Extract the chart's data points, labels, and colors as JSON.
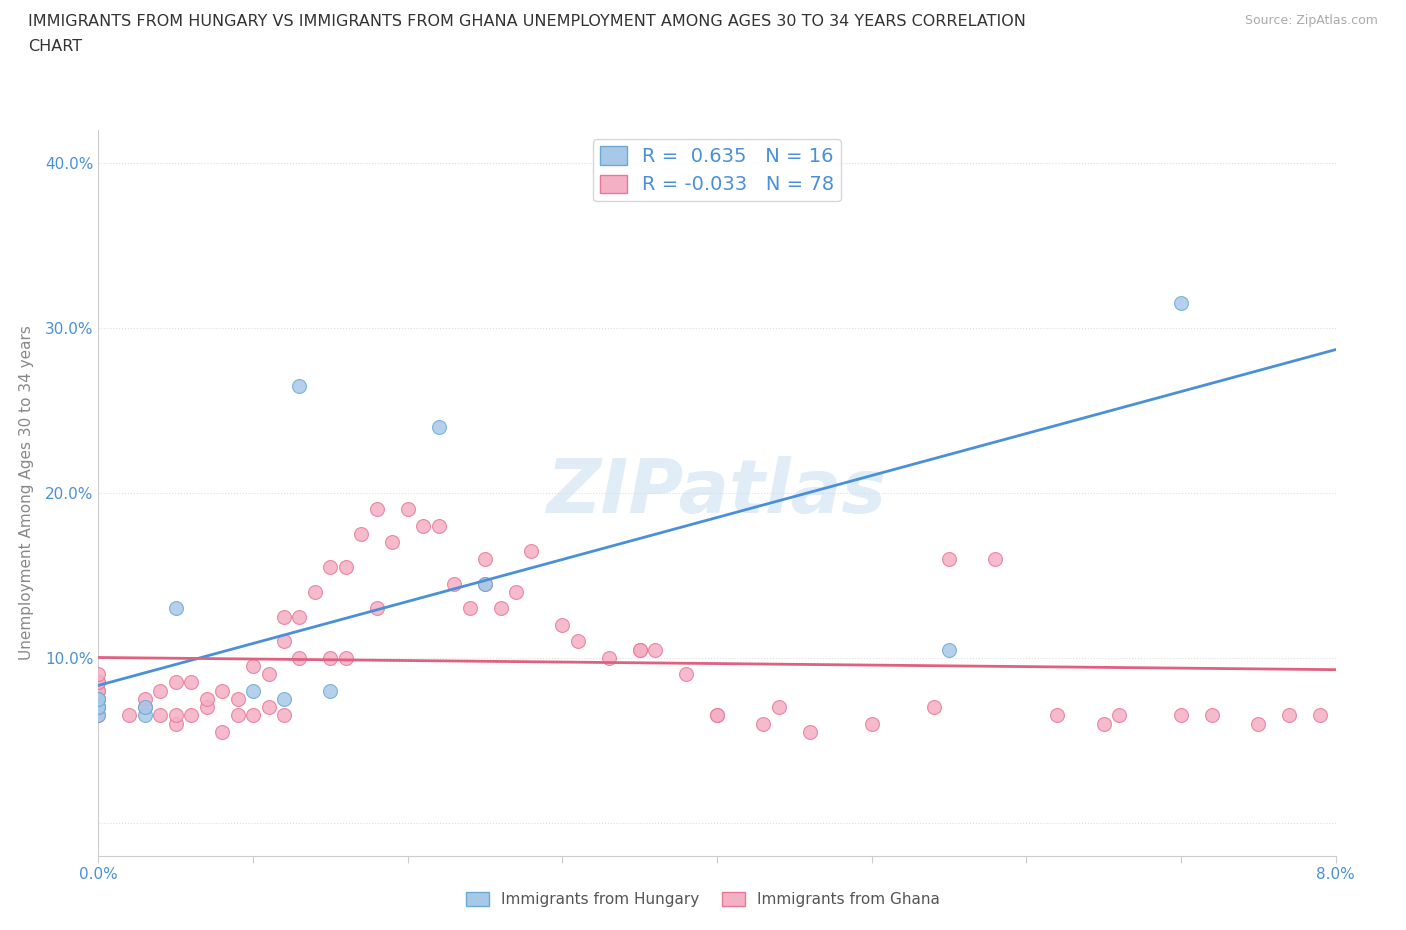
{
  "title_line1": "IMMIGRANTS FROM HUNGARY VS IMMIGRANTS FROM GHANA UNEMPLOYMENT AMONG AGES 30 TO 34 YEARS CORRELATION",
  "title_line2": "CHART",
  "source": "Source: ZipAtlas.com",
  "ylabel": "Unemployment Among Ages 30 to 34 years",
  "xlim": [
    0.0,
    0.08
  ],
  "ylim": [
    -0.02,
    0.42
  ],
  "x_ticks": [
    0.0,
    0.01,
    0.02,
    0.03,
    0.04,
    0.05,
    0.06,
    0.07,
    0.08
  ],
  "x_tick_labels": [
    "0.0%",
    "",
    "",
    "",
    "",
    "",
    "",
    "",
    "8.0%"
  ],
  "y_ticks": [
    0.0,
    0.1,
    0.2,
    0.3,
    0.4
  ],
  "y_tick_labels": [
    "",
    "10.0%",
    "20.0%",
    "30.0%",
    "40.0%"
  ],
  "hungary_color": "#a8c8e8",
  "ghana_color": "#f4b0c5",
  "hungary_edge_color": "#6aaad4",
  "ghana_edge_color": "#e87898",
  "hungary_line_color": "#4a90d9",
  "ghana_line_color": "#e06080",
  "r_hungary": 0.635,
  "n_hungary": 16,
  "r_ghana": -0.033,
  "n_ghana": 78,
  "watermark": "ZIPatlas",
  "background_color": "#ffffff",
  "grid_color": "#dddddd",
  "hungary_x": [
    0.0,
    0.0,
    0.0,
    0.0,
    0.0,
    0.003,
    0.003,
    0.005,
    0.01,
    0.012,
    0.013,
    0.015,
    0.022,
    0.025,
    0.055,
    0.07
  ],
  "hungary_y": [
    0.065,
    0.07,
    0.075,
    0.07,
    0.075,
    0.065,
    0.07,
    0.13,
    0.08,
    0.075,
    0.265,
    0.08,
    0.24,
    0.145,
    0.105,
    0.315
  ],
  "ghana_x": [
    0.0,
    0.0,
    0.0,
    0.0,
    0.0,
    0.0,
    0.0,
    0.0,
    0.0,
    0.0,
    0.002,
    0.003,
    0.003,
    0.004,
    0.004,
    0.005,
    0.005,
    0.005,
    0.006,
    0.006,
    0.007,
    0.007,
    0.008,
    0.008,
    0.009,
    0.009,
    0.01,
    0.01,
    0.011,
    0.011,
    0.012,
    0.012,
    0.012,
    0.013,
    0.013,
    0.014,
    0.015,
    0.015,
    0.016,
    0.016,
    0.017,
    0.018,
    0.018,
    0.019,
    0.02,
    0.021,
    0.022,
    0.023,
    0.024,
    0.025,
    0.025,
    0.026,
    0.027,
    0.028,
    0.03,
    0.031,
    0.033,
    0.035,
    0.035,
    0.036,
    0.038,
    0.04,
    0.04,
    0.043,
    0.044,
    0.046,
    0.05,
    0.054,
    0.055,
    0.058,
    0.062,
    0.065,
    0.066,
    0.07,
    0.072,
    0.075,
    0.077,
    0.079
  ],
  "ghana_y": [
    0.065,
    0.07,
    0.07,
    0.075,
    0.075,
    0.08,
    0.08,
    0.085,
    0.085,
    0.09,
    0.065,
    0.07,
    0.075,
    0.065,
    0.08,
    0.06,
    0.065,
    0.085,
    0.065,
    0.085,
    0.07,
    0.075,
    0.055,
    0.08,
    0.065,
    0.075,
    0.065,
    0.095,
    0.07,
    0.09,
    0.065,
    0.11,
    0.125,
    0.1,
    0.125,
    0.14,
    0.1,
    0.155,
    0.1,
    0.155,
    0.175,
    0.13,
    0.19,
    0.17,
    0.19,
    0.18,
    0.18,
    0.145,
    0.13,
    0.145,
    0.16,
    0.13,
    0.14,
    0.165,
    0.12,
    0.11,
    0.1,
    0.105,
    0.105,
    0.105,
    0.09,
    0.065,
    0.065,
    0.06,
    0.07,
    0.055,
    0.06,
    0.07,
    0.16,
    0.16,
    0.065,
    0.06,
    0.065,
    0.065,
    0.065,
    0.06,
    0.065,
    0.065
  ],
  "legend_hungary_label": "Immigrants from Hungary",
  "legend_ghana_label": "Immigrants from Ghana"
}
